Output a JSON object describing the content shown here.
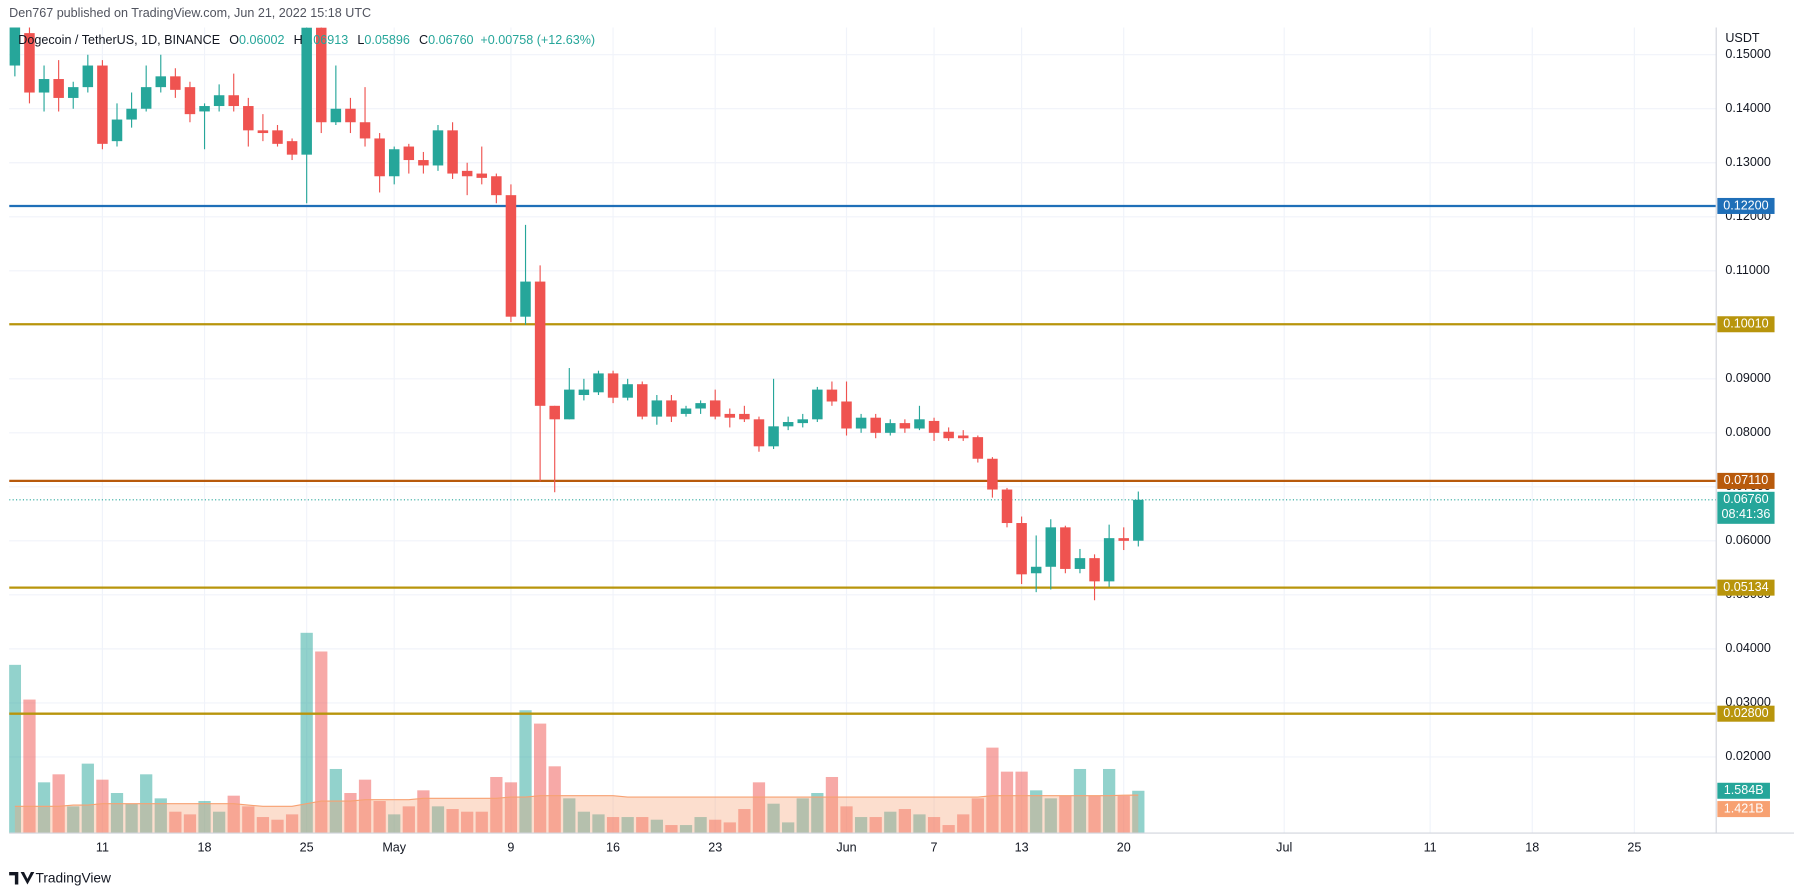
{
  "header": {
    "publisher": "Den767 published on TradingView.com, Jun 21, 2022 15:18 UTC"
  },
  "chart_data": {
    "type": "candlestick",
    "symbol": "Dogecoin / TetherUS, 1D, BINANCE",
    "legend": [
      {
        "label": "O",
        "value": "0.06002"
      },
      {
        "label": "H",
        "value": "0.06913"
      },
      {
        "label": "L",
        "value": "0.05896"
      },
      {
        "label": "C",
        "value": "0.06760"
      }
    ],
    "change": "+0.00758 (+12.63%)",
    "y_axis_unit": "USDT",
    "up_color": "#26a69a",
    "down_color": "#ef5350",
    "x": [
      "2022-04-05",
      "2022-04-06",
      "2022-04-07",
      "2022-04-08",
      "2022-04-09",
      "2022-04-10",
      "2022-04-11",
      "2022-04-12",
      "2022-04-13",
      "2022-04-14",
      "2022-04-15",
      "2022-04-16",
      "2022-04-17",
      "2022-04-18",
      "2022-04-19",
      "2022-04-20",
      "2022-04-21",
      "2022-04-22",
      "2022-04-23",
      "2022-04-24",
      "2022-04-25",
      "2022-04-26",
      "2022-04-27",
      "2022-04-28",
      "2022-04-29",
      "2022-04-30",
      "2022-05-01",
      "2022-05-02",
      "2022-05-03",
      "2022-05-04",
      "2022-05-05",
      "2022-05-06",
      "2022-05-07",
      "2022-05-08",
      "2022-05-09",
      "2022-05-10",
      "2022-05-11",
      "2022-05-12",
      "2022-05-13",
      "2022-05-14",
      "2022-05-15",
      "2022-05-16",
      "2022-05-17",
      "2022-05-18",
      "2022-05-19",
      "2022-05-20",
      "2022-05-21",
      "2022-05-22",
      "2022-05-23",
      "2022-05-24",
      "2022-05-25",
      "2022-05-26",
      "2022-05-27",
      "2022-05-28",
      "2022-05-29",
      "2022-05-30",
      "2022-05-31",
      "2022-06-01",
      "2022-06-02",
      "2022-06-03",
      "2022-06-04",
      "2022-06-05",
      "2022-06-06",
      "2022-06-07",
      "2022-06-08",
      "2022-06-09",
      "2022-06-10",
      "2022-06-11",
      "2022-06-12",
      "2022-06-13",
      "2022-06-14",
      "2022-06-15",
      "2022-06-16",
      "2022-06-17",
      "2022-06-18",
      "2022-06-19",
      "2022-06-20",
      "2022-06-21"
    ],
    "open": [
      0.148,
      0.154,
      0.143,
      0.1455,
      0.142,
      0.144,
      0.148,
      0.134,
      0.138,
      0.14,
      0.144,
      0.146,
      0.144,
      0.1395,
      0.1405,
      0.1425,
      0.1405,
      0.136,
      0.136,
      0.134,
      0.1315,
      0.155,
      0.1375,
      0.14,
      0.1375,
      0.1345,
      0.1275,
      0.133,
      0.1305,
      0.1295,
      0.136,
      0.1285,
      0.128,
      0.1275,
      0.124,
      0.1015,
      0.108,
      0.085,
      0.0825,
      0.087,
      0.0875,
      0.091,
      0.0865,
      0.089,
      0.083,
      0.086,
      0.0835,
      0.0845,
      0.086,
      0.0835,
      0.0835,
      0.0825,
      0.0775,
      0.0812,
      0.0818,
      0.0825,
      0.088,
      0.0858,
      0.0808,
      0.0828,
      0.08,
      0.0818,
      0.0808,
      0.0822,
      0.0802,
      0.0795,
      0.0792,
      0.0752,
      0.0695,
      0.0633,
      0.054,
      0.0552,
      0.0625,
      0.0548,
      0.0568,
      0.0525,
      0.0605,
      0.06002
    ],
    "high": [
      0.159,
      0.156,
      0.148,
      0.149,
      0.145,
      0.15,
      0.149,
      0.141,
      0.143,
      0.148,
      0.15,
      0.1475,
      0.145,
      0.141,
      0.1445,
      0.1465,
      0.142,
      0.139,
      0.137,
      0.1345,
      0.157,
      0.158,
      0.148,
      0.142,
      0.144,
      0.1355,
      0.133,
      0.1335,
      0.132,
      0.137,
      0.1375,
      0.13,
      0.133,
      0.128,
      0.126,
      0.1185,
      0.111,
      0.085,
      0.092,
      0.09,
      0.0915,
      0.0915,
      0.09,
      0.0895,
      0.087,
      0.087,
      0.085,
      0.086,
      0.088,
      0.0845,
      0.085,
      0.083,
      0.09,
      0.083,
      0.0835,
      0.0885,
      0.0895,
      0.0895,
      0.0835,
      0.0835,
      0.0825,
      0.0825,
      0.085,
      0.0828,
      0.081,
      0.0805,
      0.0795,
      0.0755,
      0.0698,
      0.0645,
      0.061,
      0.064,
      0.0628,
      0.0585,
      0.0575,
      0.063,
      0.0625,
      0.06913
    ],
    "low": [
      0.146,
      0.141,
      0.1395,
      0.1395,
      0.14,
      0.143,
      0.1325,
      0.133,
      0.1365,
      0.1395,
      0.143,
      0.142,
      0.1375,
      0.1325,
      0.1395,
      0.1395,
      0.133,
      0.134,
      0.133,
      0.1305,
      0.1225,
      0.1355,
      0.137,
      0.1355,
      0.133,
      0.1245,
      0.126,
      0.128,
      0.128,
      0.1285,
      0.127,
      0.124,
      0.126,
      0.1225,
      0.1005,
      0.1,
      0.071,
      0.069,
      0.0825,
      0.086,
      0.087,
      0.0855,
      0.086,
      0.0825,
      0.0815,
      0.082,
      0.083,
      0.0835,
      0.0825,
      0.081,
      0.082,
      0.0765,
      0.077,
      0.0805,
      0.081,
      0.082,
      0.085,
      0.0795,
      0.08,
      0.079,
      0.0795,
      0.08,
      0.0805,
      0.0785,
      0.0785,
      0.0785,
      0.0745,
      0.068,
      0.0625,
      0.052,
      0.0505,
      0.051,
      0.054,
      0.054,
      0.049,
      0.0515,
      0.0583,
      0.05896
    ],
    "close": [
      0.156,
      0.143,
      0.1455,
      0.142,
      0.144,
      0.148,
      0.1335,
      0.138,
      0.14,
      0.144,
      0.146,
      0.1435,
      0.139,
      0.1405,
      0.1425,
      0.1405,
      0.136,
      0.1355,
      0.1335,
      0.1315,
      0.155,
      0.1375,
      0.14,
      0.1375,
      0.1345,
      0.1275,
      0.1325,
      0.1305,
      0.1295,
      0.136,
      0.128,
      0.1275,
      0.1272,
      0.124,
      0.1015,
      0.108,
      0.085,
      0.0825,
      0.088,
      0.088,
      0.091,
      0.0865,
      0.089,
      0.083,
      0.086,
      0.083,
      0.0845,
      0.0855,
      0.083,
      0.0828,
      0.0825,
      0.0775,
      0.0812,
      0.082,
      0.0825,
      0.088,
      0.0858,
      0.0808,
      0.0828,
      0.08,
      0.0818,
      0.0808,
      0.0825,
      0.08,
      0.079,
      0.079,
      0.0752,
      0.0695,
      0.0633,
      0.0538,
      0.0552,
      0.0625,
      0.0548,
      0.0568,
      0.0525,
      0.0605,
      0.06,
      0.0676
    ],
    "xlim": [
      "2022-04-05",
      "2022-07-31"
    ],
    "ylim": [
      0.0059,
      0.1542
    ],
    "yticks": [
      {
        "value": 0.15,
        "label": "0.15000"
      },
      {
        "value": 0.14,
        "label": "0.14000"
      },
      {
        "value": 0.13,
        "label": "0.13000"
      },
      {
        "value": 0.12,
        "label": "0.12000"
      },
      {
        "value": 0.11,
        "label": "0.11000"
      },
      {
        "value": 0.1,
        "label": "0.10000"
      },
      {
        "value": 0.09,
        "label": "0.09000"
      },
      {
        "value": 0.08,
        "label": "0.08000"
      },
      {
        "value": 0.07,
        "label": "0.07000"
      },
      {
        "value": 0.06,
        "label": "0.06000"
      },
      {
        "value": 0.05,
        "label": "0.05000"
      },
      {
        "value": 0.04,
        "label": "0.04000"
      },
      {
        "value": 0.03,
        "label": "0.03000"
      },
      {
        "value": 0.02,
        "label": "0.02000"
      }
    ],
    "xticks": [
      {
        "value": "2022-04-11",
        "label": "11"
      },
      {
        "value": "2022-04-18",
        "label": "18"
      },
      {
        "value": "2022-04-25",
        "label": "25"
      },
      {
        "value": "2022-05-01",
        "label": "May"
      },
      {
        "value": "2022-05-09",
        "label": "9"
      },
      {
        "value": "2022-05-16",
        "label": "16"
      },
      {
        "value": "2022-05-23",
        "label": "23"
      },
      {
        "value": "2022-06-01",
        "label": "Jun"
      },
      {
        "value": "2022-06-07",
        "label": "7"
      },
      {
        "value": "2022-06-13",
        "label": "13"
      },
      {
        "value": "2022-06-20",
        "label": "20"
      },
      {
        "value": "2022-07-01",
        "label": "Jul"
      },
      {
        "value": "2022-07-11",
        "label": "11"
      },
      {
        "value": "2022-07-18",
        "label": "18"
      },
      {
        "value": "2022-07-25",
        "label": "25"
      }
    ],
    "grid": true,
    "levels": [
      {
        "value": 0.122,
        "label": "0.12200",
        "color": "#1f6fb8"
      },
      {
        "value": 0.1001,
        "label": "0.10010",
        "color": "#b8950c"
      },
      {
        "value": 0.0711,
        "label": "0.07110",
        "color": "#b85a0c"
      },
      {
        "value": 0.05134,
        "label": "0.05134",
        "color": "#b8950c"
      },
      {
        "value": 0.028,
        "label": "0.02800",
        "color": "#b8950c"
      }
    ],
    "last_price": {
      "value": 0.0676,
      "label": "0.06760",
      "countdown": "08:41:36",
      "color": "#26a69a"
    },
    "volume": {
      "ylim": [
        0,
        30
      ],
      "up_color": "rgba(38,166,154,0.5)",
      "down_color": "rgba(239,83,80,0.5)",
      "ma_color": "#f7a172",
      "values": [
        6.3,
        5.0,
        1.9,
        2.2,
        1.0,
        2.6,
        2.0,
        1.5,
        1.1,
        2.2,
        1.3,
        0.8,
        0.7,
        1.2,
        0.8,
        1.4,
        1.0,
        0.6,
        0.5,
        0.7,
        7.5,
        6.8,
        2.4,
        1.5,
        2.0,
        1.2,
        0.7,
        1.0,
        1.6,
        1.0,
        0.9,
        0.8,
        0.8,
        2.1,
        1.9,
        4.6,
        4.1,
        2.5,
        1.3,
        0.8,
        0.7,
        0.6,
        0.6,
        0.6,
        0.5,
        0.3,
        0.3,
        0.6,
        0.5,
        0.4,
        0.9,
        1.9,
        1.1,
        0.4,
        1.3,
        1.5,
        2.1,
        1.0,
        0.6,
        0.6,
        0.8,
        0.9,
        0.7,
        0.6,
        0.3,
        0.7,
        1.3,
        3.2,
        2.3,
        2.3,
        1.6,
        1.3,
        1.4,
        2.4,
        1.4,
        2.4,
        1.4,
        1.584
      ],
      "ma": [
        1.0,
        1.0,
        1.0,
        1.0,
        1.05,
        1.05,
        1.1,
        1.1,
        1.1,
        1.1,
        1.1,
        1.1,
        1.1,
        1.1,
        1.1,
        1.1,
        1.05,
        1.0,
        1.0,
        1.0,
        1.1,
        1.2,
        1.2,
        1.2,
        1.25,
        1.25,
        1.25,
        1.25,
        1.3,
        1.3,
        1.3,
        1.3,
        1.3,
        1.3,
        1.35,
        1.35,
        1.4,
        1.4,
        1.4,
        1.4,
        1.4,
        1.4,
        1.35,
        1.35,
        1.35,
        1.35,
        1.35,
        1.35,
        1.35,
        1.35,
        1.35,
        1.35,
        1.35,
        1.35,
        1.35,
        1.35,
        1.35,
        1.35,
        1.35,
        1.35,
        1.35,
        1.35,
        1.35,
        1.35,
        1.35,
        1.35,
        1.35,
        1.4,
        1.4,
        1.4,
        1.4,
        1.4,
        1.4,
        1.4,
        1.4,
        1.4,
        1.42,
        1.421
      ],
      "labels": [
        {
          "value": 1.584,
          "label": "1.584B",
          "color": "#26a69a"
        },
        {
          "value": 1.421,
          "label": "1.421B",
          "color": "#f7a172"
        }
      ]
    }
  },
  "footer": {
    "brand": "TradingView"
  }
}
